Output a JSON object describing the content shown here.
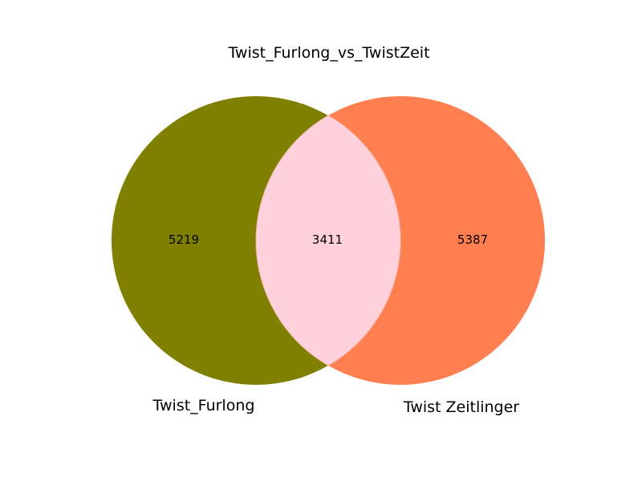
{
  "chart_data": {
    "type": "venn",
    "title": "Twist_Furlong_vs_TwistZeit",
    "sets": [
      {
        "name": "Twist_Furlong",
        "only": 5219,
        "color": "#808000"
      },
      {
        "name": "Twist Zeitlinger",
        "only": 5387,
        "color": "#ff7f50"
      }
    ],
    "intersection": {
      "value": 3411,
      "color": "#ffd1dc"
    }
  }
}
